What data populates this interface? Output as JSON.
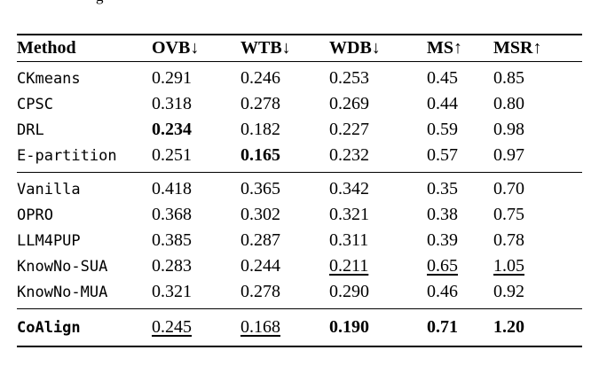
{
  "caption_fragment": "g",
  "chart_data": {
    "type": "table",
    "columns": [
      "Method",
      "OVB↓",
      "WTB↓",
      "WDB↓",
      "MS↑",
      "MSR↑"
    ],
    "groups": [
      {
        "rows": [
          {
            "method": "CKmeans",
            "method_bold": false,
            "values": [
              "0.291",
              "0.246",
              "0.253",
              "0.45",
              "0.85"
            ],
            "bold": [],
            "underline": []
          },
          {
            "method": "CPSC",
            "method_bold": false,
            "values": [
              "0.318",
              "0.278",
              "0.269",
              "0.44",
              "0.80"
            ],
            "bold": [],
            "underline": []
          },
          {
            "method": "DRL",
            "method_bold": false,
            "values": [
              "0.234",
              "0.182",
              "0.227",
              "0.59",
              "0.98"
            ],
            "bold": [
              0
            ],
            "underline": []
          },
          {
            "method": "E-partition",
            "method_bold": false,
            "values": [
              "0.251",
              "0.165",
              "0.232",
              "0.57",
              "0.97"
            ],
            "bold": [
              1
            ],
            "underline": []
          }
        ]
      },
      {
        "rows": [
          {
            "method": "Vanilla",
            "method_bold": false,
            "values": [
              "0.418",
              "0.365",
              "0.342",
              "0.35",
              "0.70"
            ],
            "bold": [],
            "underline": []
          },
          {
            "method": "OPRO",
            "method_bold": false,
            "values": [
              "0.368",
              "0.302",
              "0.321",
              "0.38",
              "0.75"
            ],
            "bold": [],
            "underline": []
          },
          {
            "method": "LLM4PUP",
            "method_bold": false,
            "values": [
              "0.385",
              "0.287",
              "0.311",
              "0.39",
              "0.78"
            ],
            "bold": [],
            "underline": []
          },
          {
            "method": "KnowNo-SUA",
            "method_bold": false,
            "values": [
              "0.283",
              "0.244",
              "0.211",
              "0.65",
              "1.05"
            ],
            "bold": [],
            "underline": [
              2,
              3,
              4
            ]
          },
          {
            "method": "KnowNo-MUA",
            "method_bold": false,
            "values": [
              "0.321",
              "0.278",
              "0.290",
              "0.46",
              "0.92"
            ],
            "bold": [],
            "underline": []
          }
        ]
      },
      {
        "rows": [
          {
            "method": "CoAlign",
            "method_bold": true,
            "values": [
              "0.245",
              "0.168",
              "0.190",
              "0.71",
              "1.20"
            ],
            "bold": [
              2,
              3,
              4
            ],
            "underline": [
              0,
              1
            ]
          }
        ]
      }
    ]
  }
}
